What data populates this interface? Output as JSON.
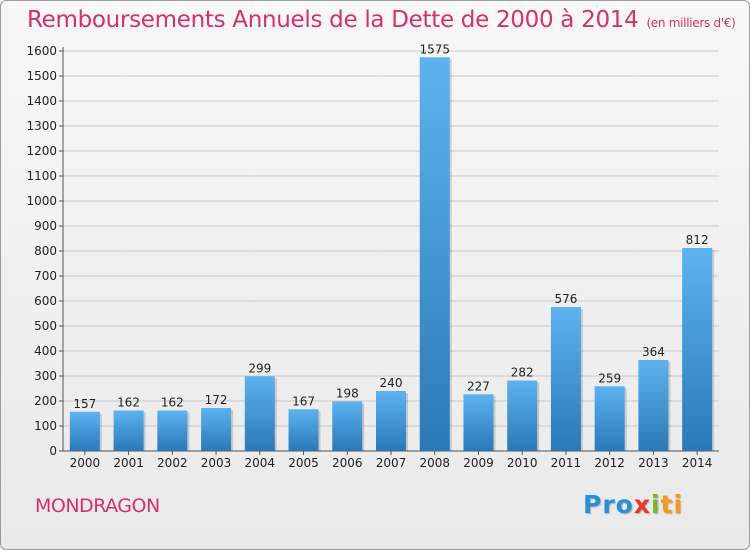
{
  "header": {
    "title": "Remboursements Annuels de la Dette de 2000 à 2014",
    "unit": "(en milliers d'€)"
  },
  "footer": {
    "commune": "MONDRAGON",
    "logo": [
      "Pro",
      "x",
      "i",
      "ti"
    ]
  },
  "colors": {
    "bar": "#3d95d6",
    "title": "#d2306e",
    "grid": "#c8c8c8"
  },
  "chart_data": {
    "type": "bar",
    "title": "Remboursements Annuels de la Dette de 2000 à 2014",
    "categories": [
      "2000",
      "2001",
      "2002",
      "2003",
      "2004",
      "2005",
      "2006",
      "2007",
      "2008",
      "2009",
      "2010",
      "2011",
      "2012",
      "2013",
      "2014"
    ],
    "values": [
      157,
      162,
      162,
      172,
      299,
      167,
      198,
      240,
      1575,
      227,
      282,
      576,
      259,
      364,
      812
    ],
    "ylim": [
      0,
      1600
    ],
    "yticks": [
      0,
      100,
      200,
      300,
      400,
      500,
      600,
      700,
      800,
      900,
      1000,
      1100,
      1200,
      1300,
      1400,
      1500,
      1600
    ],
    "grid": true,
    "xlabel": "",
    "ylabel": ""
  }
}
